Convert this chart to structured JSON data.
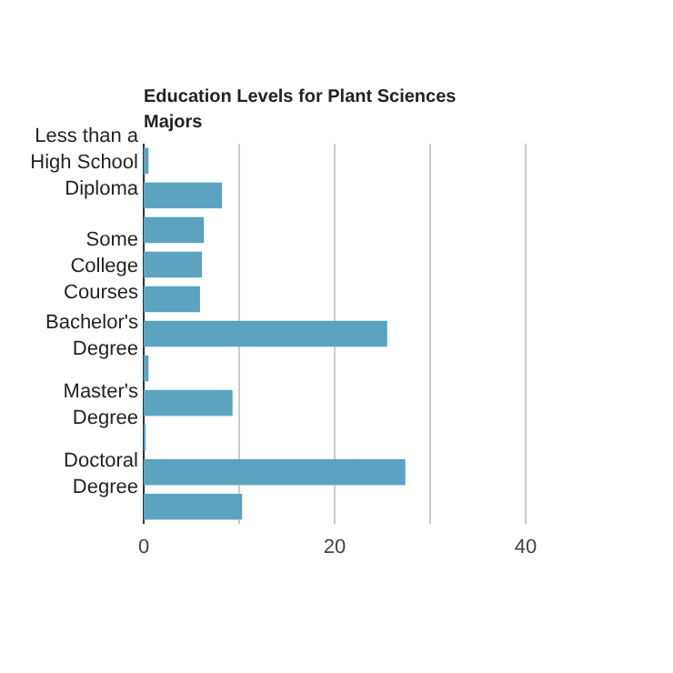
{
  "chart_data": {
    "type": "bar",
    "orientation": "horizontal",
    "title": "Education Levels for Plant Sciences Majors",
    "categories": [
      "Less than a High School Diploma",
      null,
      null,
      "Some College Courses",
      null,
      "Bachelor's Degree",
      null,
      "Master's Degree",
      null,
      "Doctoral Degree",
      null
    ],
    "values": [
      0.5,
      8.2,
      6.3,
      6.1,
      5.9,
      25.5,
      0.5,
      9.3,
      0.2,
      27.4,
      10.3
    ],
    "color": "#5ba3c0",
    "xlim": [
      0,
      40
    ],
    "xticks": [
      0,
      {
        "value": 10,
        "label": null
      },
      20,
      {
        "value": 30,
        "label": null
      },
      40
    ],
    "grid": "x"
  }
}
